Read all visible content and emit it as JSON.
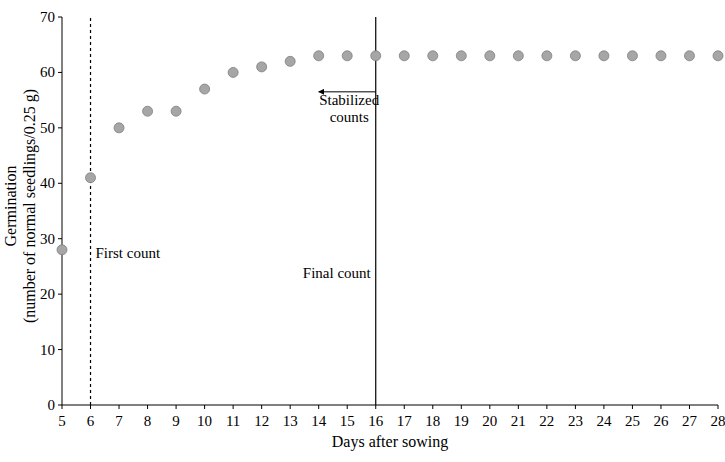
{
  "chart_data": {
    "type": "scatter",
    "x_label": "Days after sowing",
    "y_label": [
      "Germination",
      "(number of normal seedlings/0.25 g)"
    ],
    "x": [
      5,
      6,
      7,
      8,
      9,
      10,
      11,
      12,
      13,
      14,
      15,
      16,
      17,
      18,
      19,
      20,
      21,
      22,
      23,
      24,
      25,
      26,
      27,
      28
    ],
    "values": [
      28,
      41,
      50,
      53,
      53,
      57,
      60,
      61,
      62,
      63,
      63,
      63,
      63,
      63,
      63,
      63,
      63,
      63,
      63,
      63,
      63,
      63,
      63,
      63
    ],
    "color": "#a6a6a6",
    "marker": "circle",
    "xlim": [
      5,
      28
    ],
    "xticks": [
      5,
      6,
      7,
      8,
      9,
      10,
      11,
      12,
      13,
      14,
      15,
      16,
      17,
      18,
      19,
      20,
      21,
      22,
      23,
      24,
      25,
      26,
      27,
      28
    ],
    "ylim": [
      0,
      70
    ],
    "yticks": [
      0,
      10,
      20,
      30,
      40,
      50,
      60,
      70
    ],
    "grid": false,
    "reference_lines": [
      {
        "x": 6,
        "label": "First count",
        "line_style": "dashed"
      },
      {
        "x": 16,
        "label": "Final count",
        "line_style": "solid"
      }
    ],
    "annotations": [
      {
        "text": "Stabilized counts",
        "x": 16,
        "x_end": 14,
        "y": 56.5
      }
    ]
  }
}
